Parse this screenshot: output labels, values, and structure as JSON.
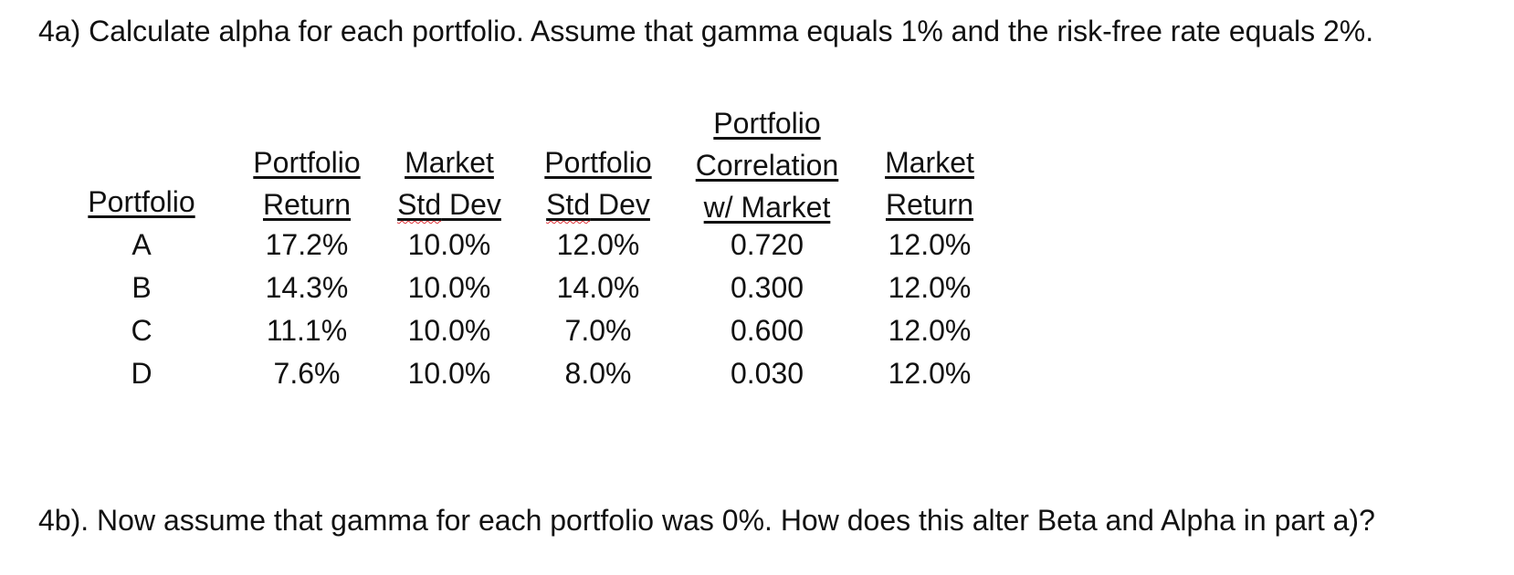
{
  "question_a": "4a) Calculate alpha for each portfolio.  Assume that gamma equals 1% and the risk-free rate equals 2%.",
  "question_b": "4b). Now assume that gamma for each portfolio was 0%. How does this alter Beta and Alpha in part a)?",
  "table": {
    "headers": [
      [
        "Portfolio"
      ],
      [
        "Portfolio",
        "Return"
      ],
      [
        "Market",
        "Std Dev"
      ],
      [
        "Portfolio",
        "Std Dev"
      ],
      [
        "Portfolio",
        "Correlation",
        "w/ Market"
      ],
      [
        "Market",
        "Return"
      ]
    ],
    "rows": [
      [
        "A",
        "17.2%",
        "10.0%",
        "12.0%",
        "0.720",
        "12.0%"
      ],
      [
        "B",
        "14.3%",
        "10.0%",
        "14.0%",
        "0.300",
        "12.0%"
      ],
      [
        "C",
        "11.1%",
        "10.0%",
        "7.0%",
        "0.600",
        "12.0%"
      ],
      [
        "D",
        "7.6%",
        "10.0%",
        "8.0%",
        "0.030",
        "12.0%"
      ]
    ]
  }
}
